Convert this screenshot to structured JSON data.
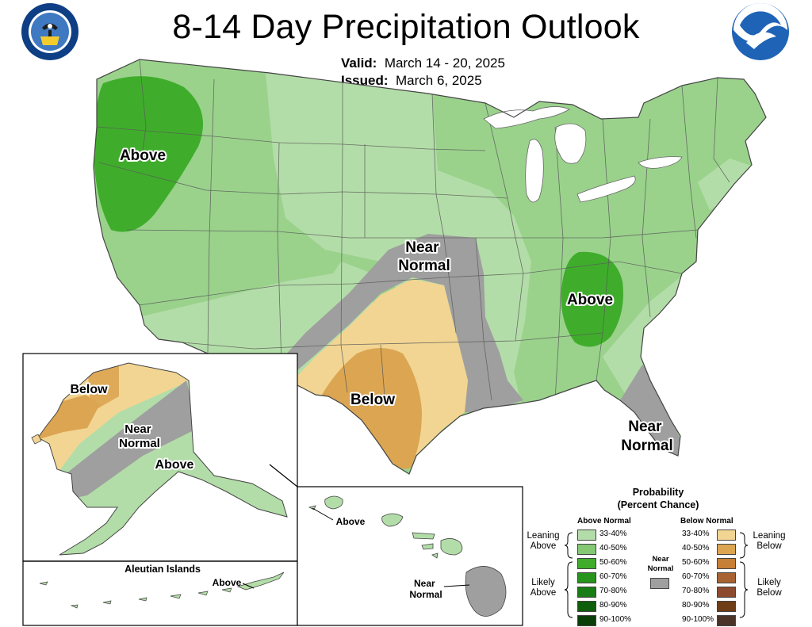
{
  "title": "8-14 Day Precipitation Outlook",
  "valid_label": "Valid:",
  "valid_value": "March 14 - 20, 2025",
  "issued_label": "Issued:",
  "issued_value": "March 6, 2025",
  "logos": {
    "left": "department-of-commerce-seal",
    "right": "noaa-logo"
  },
  "map_labels": {
    "pacific_nw": "Above",
    "central_near_normal": "Near\nNormal",
    "tennessee_valley": "Above",
    "texas": "Below",
    "florida_near_normal": "Near\nNormal",
    "alaska_below": "Below",
    "alaska_near_normal": "Near\nNormal",
    "alaska_above": "Above",
    "aleutian_title": "Aleutian Islands",
    "aleutian_above": "Above",
    "hawaii_above": "Above",
    "hawaii_near_normal": "Near\nNormal"
  },
  "legend": {
    "title": "Probability",
    "subtitle": "(Percent Chance)",
    "above_header": "Above Normal",
    "below_header": "Below Normal",
    "near_normal": "Near\nNormal",
    "leaning_above": "Leaning\nAbove",
    "likely_above": "Likely\nAbove",
    "leaning_below": "Leaning\nBelow",
    "likely_below": "Likely\nBelow",
    "ranges": [
      "33-40%",
      "40-50%",
      "50-60%",
      "60-70%",
      "70-80%",
      "80-90%",
      "90-100%"
    ],
    "above_colors": [
      "#b3dda8",
      "#84c873",
      "#3fad2b",
      "#26941d",
      "#197d15",
      "#0f5e0b",
      "#0a3e08"
    ],
    "below_colors": [
      "#f2d592",
      "#dba552",
      "#c77e35",
      "#a86332",
      "#8c4a2e",
      "#6e3d17",
      "#4a3427"
    ],
    "near_normal_color": "#9f9f9f"
  }
}
